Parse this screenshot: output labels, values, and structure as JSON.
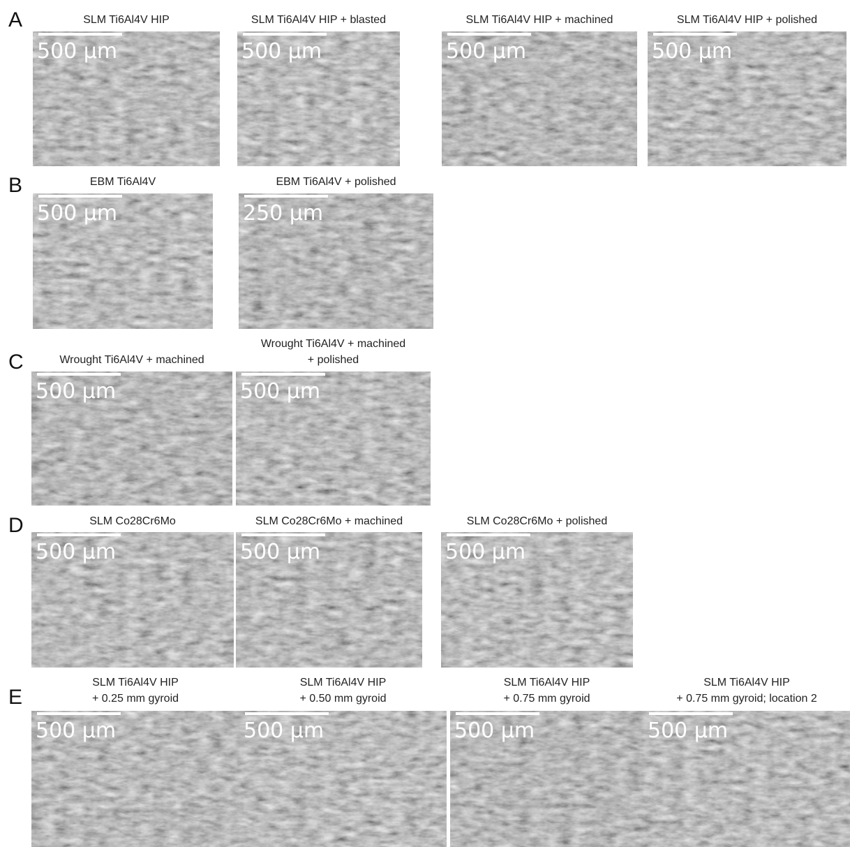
{
  "rows": [
    {
      "letter": "A",
      "panels": [
        {
          "title": [
            "SLM Ti6Al4V HIP"
          ],
          "scale": "500 µm"
        },
        {
          "title": [
            "SLM Ti6Al4V HIP + blasted"
          ],
          "scale": "500 µm"
        },
        {
          "title": [
            "SLM Ti6Al4V HIP + machined"
          ],
          "scale": "500 µm"
        },
        {
          "title": [
            "SLM Ti6Al4V HIP + polished"
          ],
          "scale": "500 µm"
        }
      ]
    },
    {
      "letter": "B",
      "panels": [
        {
          "title": [
            "EBM Ti6Al4V"
          ],
          "scale": "500 µm"
        },
        {
          "title": [
            "EBM Ti6Al4V + polished"
          ],
          "scale": "250 µm"
        }
      ]
    },
    {
      "letter": "C",
      "panels": [
        {
          "title": [
            "Wrought Ti6Al4V + machined"
          ],
          "scale": "500 µm"
        },
        {
          "title": [
            "Wrought Ti6Al4V + machined",
            "+ polished"
          ],
          "scale": "500 µm"
        }
      ]
    },
    {
      "letter": "D",
      "panels": [
        {
          "title": [
            "SLM Co28Cr6Mo"
          ],
          "scale": "500 µm"
        },
        {
          "title": [
            "SLM Co28Cr6Mo + machined"
          ],
          "scale": "500 µm"
        },
        {
          "title": [
            "SLM Co28Cr6Mo + polished"
          ],
          "scale": "500 µm"
        }
      ]
    },
    {
      "letter": "E",
      "panels": [
        {
          "title": [
            "SLM Ti6Al4V HIP",
            "+ 0.25 mm gyroid"
          ],
          "scale": "500 µm"
        },
        {
          "title": [
            "SLM Ti6Al4V HIP",
            "+ 0.50 mm gyroid"
          ],
          "scale": "500 µm"
        },
        {
          "title": [
            "SLM Ti6Al4V HIP",
            "+ 0.75 mm gyroid"
          ],
          "scale": "500 µm"
        },
        {
          "title": [
            "SLM Ti6Al4V HIP",
            "+ 0.75 mm gyroid; location 2"
          ],
          "scale": "500 µm"
        }
      ]
    }
  ]
}
